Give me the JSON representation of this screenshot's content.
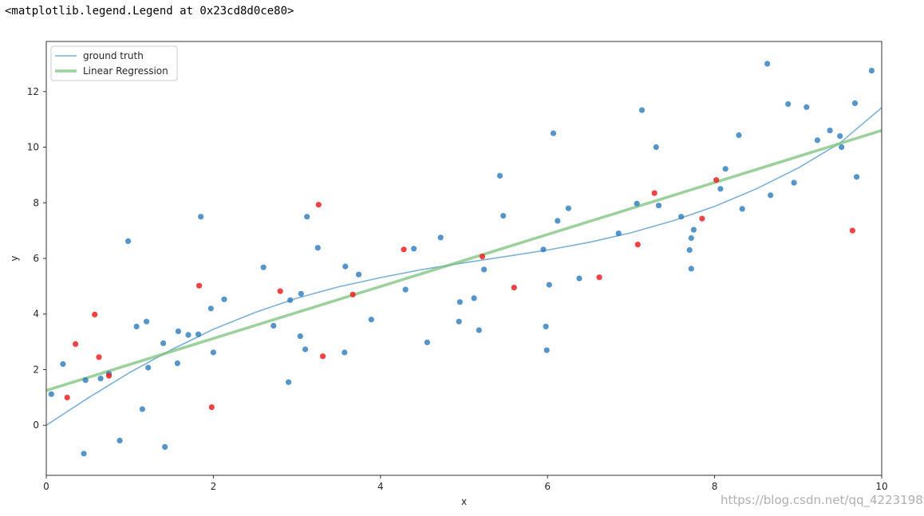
{
  "output_text": "<matplotlib.legend.Legend at 0x23cd8d0ce80>",
  "watermark": "https://blog.csdn.net/qq_42231980",
  "colors": {
    "ground_truth": "#5b9ccf",
    "regression": "#7ac17a",
    "train_points": "#2a7bbd",
    "test_points": "#ee2222",
    "axes": "#333333"
  },
  "chart_data": {
    "type": "scatter",
    "xlabel": "x",
    "ylabel": "y",
    "xlim": [
      0,
      10
    ],
    "ylim": [
      -1.8,
      13.8
    ],
    "xticks": [
      0,
      2,
      4,
      6,
      8,
      10
    ],
    "yticks": [
      0,
      2,
      4,
      6,
      8,
      10,
      12
    ],
    "grid": false,
    "legend_position": "top-left",
    "legend": [
      "ground truth",
      "Linear Regression"
    ],
    "lines": [
      {
        "name": "ground truth",
        "color": "#5b9ccf",
        "x": [
          0,
          0.5,
          1,
          1.5,
          2,
          2.5,
          3,
          3.5,
          4,
          4.5,
          5,
          5.5,
          6,
          6.5,
          7,
          7.5,
          8,
          8.5,
          9,
          9.5,
          10
        ],
        "y": [
          0.0,
          0.98,
          1.9,
          2.72,
          3.45,
          4.06,
          4.57,
          4.98,
          5.31,
          5.6,
          5.84,
          6.07,
          6.3,
          6.58,
          6.92,
          7.35,
          7.87,
          8.5,
          9.25,
          10.15,
          11.42
        ]
      },
      {
        "name": "Linear Regression",
        "color": "#7ac17a",
        "x": [
          0,
          10
        ],
        "y": [
          1.25,
          10.6
        ]
      }
    ],
    "series": [
      {
        "role": "train",
        "color": "#2a7bbd",
        "x": [
          0.06,
          0.2,
          0.45,
          0.47,
          0.65,
          0.75,
          0.88,
          0.98,
          1.08,
          1.15,
          1.2,
          1.22,
          1.4,
          1.42,
          1.57,
          1.58,
          1.7,
          1.82,
          1.85,
          1.97,
          2.0,
          2.13,
          2.6,
          2.72,
          2.9,
          2.92,
          3.04,
          3.05,
          3.1,
          3.12,
          3.25,
          3.57,
          3.58,
          3.74,
          3.89,
          4.3,
          4.4,
          4.56,
          4.72,
          4.94,
          4.95,
          5.12,
          5.18,
          5.24,
          5.43,
          5.47,
          5.95,
          5.98,
          5.99,
          6.02,
          6.07,
          6.12,
          6.25,
          6.38,
          6.85,
          7.07,
          7.13,
          7.3,
          7.33,
          7.6,
          7.7,
          7.72,
          7.72,
          7.75,
          8.07,
          8.13,
          8.29,
          8.33,
          8.63,
          8.67,
          8.88,
          8.95,
          9.1,
          9.23,
          9.38,
          9.5,
          9.52,
          9.68,
          9.7,
          9.88
        ],
        "y": [
          1.12,
          2.2,
          -1.02,
          1.62,
          1.68,
          1.85,
          -0.55,
          6.62,
          3.55,
          0.58,
          3.73,
          2.07,
          2.95,
          -0.78,
          2.23,
          3.38,
          3.25,
          3.27,
          7.5,
          4.2,
          2.62,
          4.53,
          5.68,
          3.58,
          1.55,
          4.5,
          3.2,
          4.73,
          2.73,
          7.5,
          6.38,
          2.62,
          5.71,
          5.42,
          3.8,
          4.88,
          6.35,
          2.98,
          6.75,
          3.73,
          4.43,
          4.57,
          3.42,
          5.6,
          8.97,
          7.53,
          6.32,
          3.55,
          2.7,
          5.05,
          10.5,
          7.35,
          7.8,
          5.28,
          6.9,
          7.97,
          11.33,
          10.0,
          7.9,
          7.5,
          6.3,
          5.63,
          6.73,
          7.03,
          8.5,
          9.22,
          10.43,
          7.78,
          13.0,
          8.27,
          11.55,
          8.72,
          11.44,
          10.25,
          10.6,
          10.4,
          10.0,
          11.58,
          8.93,
          12.75
        ]
      },
      {
        "role": "test",
        "color": "#ee2222",
        "x": [
          0.25,
          0.35,
          0.58,
          0.63,
          0.75,
          1.83,
          1.98,
          2.8,
          3.26,
          3.31,
          3.67,
          4.28,
          5.22,
          5.6,
          6.62,
          7.08,
          7.28,
          7.85,
          8.02,
          9.65
        ],
        "y": [
          1.0,
          2.92,
          3.98,
          2.45,
          1.78,
          5.02,
          0.65,
          4.82,
          7.93,
          2.48,
          4.7,
          6.32,
          6.07,
          4.95,
          5.32,
          6.5,
          8.35,
          7.43,
          8.82,
          7.0
        ]
      }
    ]
  }
}
